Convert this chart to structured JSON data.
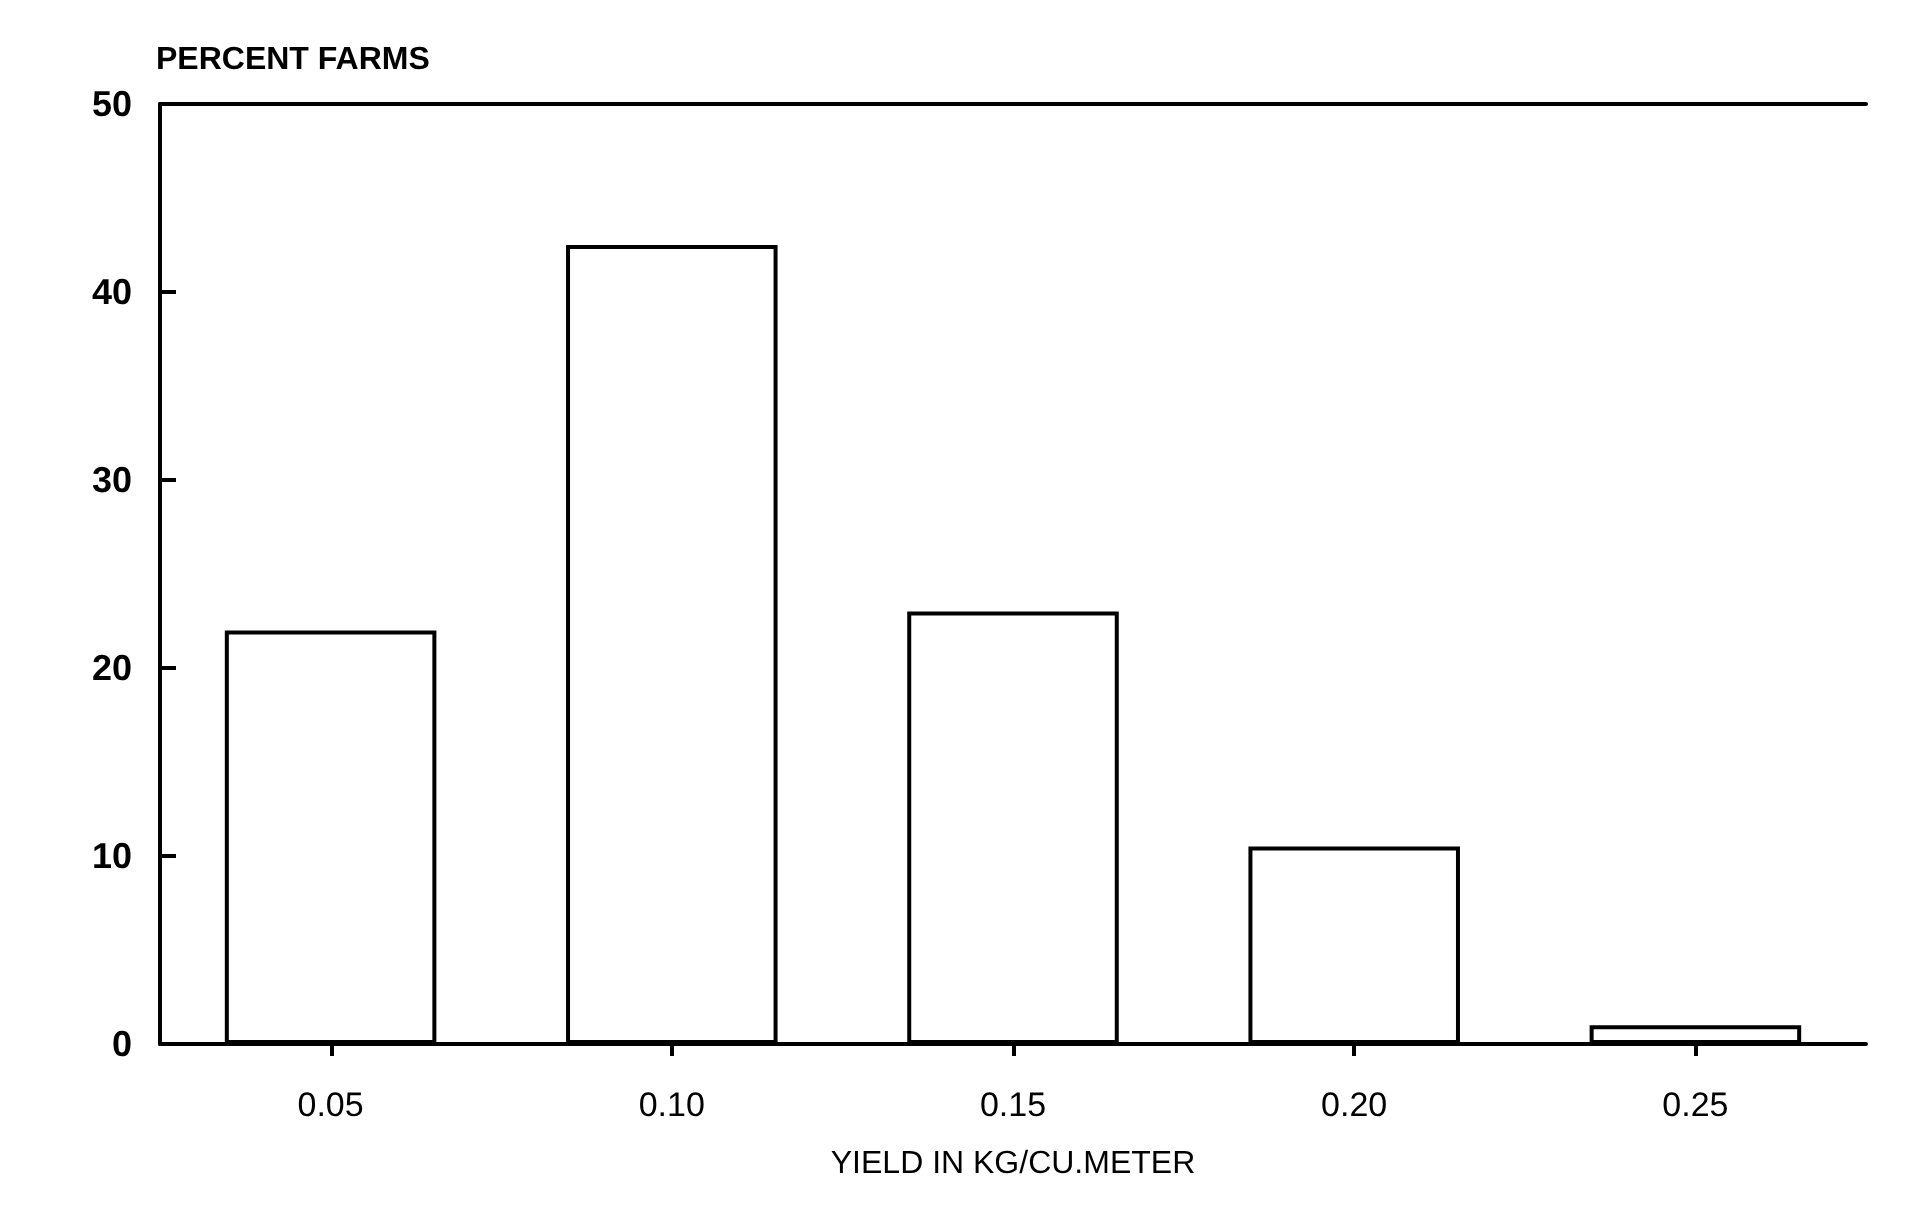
{
  "chart_data": {
    "type": "bar",
    "ylabel": "PERCENT FARMS",
    "xlabel": "YIELD IN KG/CU.METER",
    "categories": [
      "0.05",
      "0.10",
      "0.15",
      "0.20",
      "0.25"
    ],
    "values": [
      22,
      42.5,
      23,
      10.5,
      1
    ],
    "color": "#ffffff",
    "ylim": [
      0,
      50
    ],
    "yticks": [
      0,
      10,
      20,
      30,
      40,
      50
    ],
    "grid": false
  }
}
